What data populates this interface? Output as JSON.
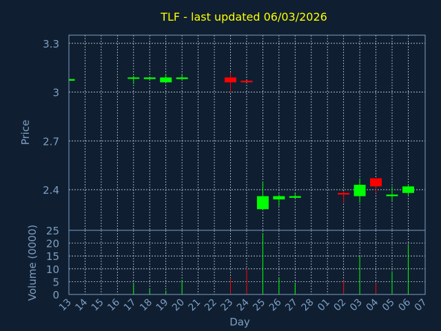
{
  "chart_data": {
    "type": "candlestick",
    "title": "TLF - last updated 06/03/2026",
    "xlabel": "Day",
    "price_ylabel": "Price",
    "volume_ylabel": "Volume (0000)",
    "x_ticks": [
      "13",
      "14",
      "15",
      "16",
      "17",
      "18",
      "19",
      "20",
      "21",
      "22",
      "23",
      "24",
      "25",
      "26",
      "27",
      "28",
      "01",
      "02",
      "03",
      "04",
      "05",
      "06",
      "07"
    ],
    "price_ylim": [
      2.15,
      3.35
    ],
    "price_yticks": [
      2.4,
      2.7,
      3,
      3.3
    ],
    "price_ytick_labels": [
      "2.4",
      "2.7",
      "3",
      "3.3"
    ],
    "volume_ylim": [
      0,
      25
    ],
    "volume_yticks": [
      0,
      5,
      10,
      15,
      20,
      25
    ],
    "volume_ytick_labels": [
      "0",
      "5",
      "10",
      "15",
      "20",
      "25"
    ],
    "grid": true,
    "colors": {
      "up": "#00ff00",
      "down": "#ff0000",
      "background": "#0f1f31",
      "text": "#7f9fc2",
      "title": "#ffff00"
    },
    "candles": [
      {
        "day": "13",
        "open": 3.07,
        "high": 3.08,
        "low": 3.07,
        "close": 3.08,
        "volume": 0
      },
      {
        "day": "17",
        "open": 3.09,
        "high": 3.1,
        "low": 3.05,
        "close": 3.09,
        "volume": 4
      },
      {
        "day": "18",
        "open": 3.08,
        "high": 3.09,
        "low": 3.08,
        "close": 3.09,
        "volume": 2
      },
      {
        "day": "19",
        "open": 3.06,
        "high": 3.11,
        "low": 3.06,
        "close": 3.09,
        "volume": 1.5
      },
      {
        "day": "20",
        "open": 3.08,
        "high": 3.11,
        "low": 3.08,
        "close": 3.09,
        "volume": 5.5
      },
      {
        "day": "23",
        "open": 3.09,
        "high": 3.12,
        "low": 3.0,
        "close": 3.06,
        "volume": 6.5
      },
      {
        "day": "24",
        "open": 3.07,
        "high": 3.07,
        "low": 3.06,
        "close": 3.06,
        "volume": 10
      },
      {
        "day": "25",
        "open": 2.28,
        "high": 2.45,
        "low": 2.28,
        "close": 2.36,
        "volume": 24
      },
      {
        "day": "26",
        "open": 2.34,
        "high": 2.37,
        "low": 2.3,
        "close": 2.36,
        "volume": 6.5
      },
      {
        "day": "27",
        "open": 2.35,
        "high": 2.38,
        "low": 2.35,
        "close": 2.36,
        "volume": 4.5
      },
      {
        "day": "02",
        "open": 2.38,
        "high": 2.39,
        "low": 2.32,
        "close": 2.37,
        "volume": 5.5
      },
      {
        "day": "03",
        "open": 2.36,
        "high": 2.47,
        "low": 2.32,
        "close": 2.43,
        "volume": 15
      },
      {
        "day": "04",
        "open": 2.47,
        "high": 2.47,
        "low": 2.38,
        "close": 2.42,
        "volume": 4.5
      },
      {
        "day": "05",
        "open": 2.36,
        "high": 2.42,
        "low": 2.33,
        "close": 2.37,
        "volume": 9
      },
      {
        "day": "06",
        "open": 2.38,
        "high": 2.43,
        "low": 2.36,
        "close": 2.42,
        "volume": 19.5
      }
    ]
  }
}
